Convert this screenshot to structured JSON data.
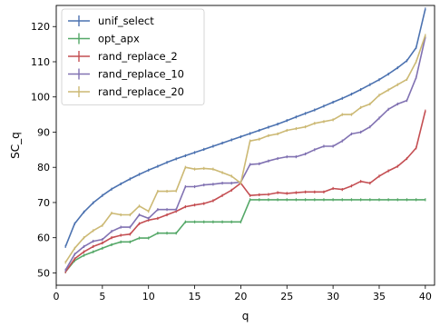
{
  "chart_data": {
    "type": "line",
    "xlabel": "q",
    "ylabel": "SC_q",
    "xlim": [
      0,
      41
    ],
    "ylim": [
      46.5,
      126
    ],
    "xticks": [
      "0",
      "5",
      "10",
      "15",
      "20",
      "25",
      "30",
      "35",
      "40"
    ],
    "yticks": [
      "50",
      "60",
      "70",
      "80",
      "90",
      "100",
      "110",
      "120"
    ],
    "grid": false,
    "legend_position": "top-left",
    "x": [
      1,
      2,
      3,
      4,
      5,
      6,
      7,
      8,
      9,
      10,
      11,
      12,
      13,
      14,
      15,
      16,
      17,
      18,
      19,
      20,
      21,
      22,
      23,
      24,
      25,
      26,
      27,
      28,
      29,
      30,
      31,
      32,
      33,
      34,
      35,
      36,
      37,
      38,
      39,
      40
    ],
    "series": [
      {
        "name": "unif_select",
        "color": "#4c72b0",
        "values": [
          57.5,
          64.0,
          67.3,
          69.9,
          72.0,
          73.8,
          75.3,
          76.7,
          78.0,
          79.2,
          80.3,
          81.4,
          82.4,
          83.3,
          84.2,
          85.1,
          86.0,
          86.9,
          87.8,
          88.7,
          89.6,
          90.5,
          91.4,
          92.3,
          93.3,
          94.3,
          95.3,
          96.3,
          97.4,
          98.5,
          99.6,
          100.8,
          102.1,
          103.5,
          104.9,
          106.5,
          108.3,
          110.3,
          114.0,
          125.0
        ]
      },
      {
        "name": "opt_apx",
        "color": "#55a868",
        "values": [
          50.3,
          53.5,
          55.0,
          56.0,
          57.0,
          58.0,
          58.8,
          58.8,
          59.9,
          59.9,
          61.3,
          61.3,
          61.3,
          64.5,
          64.5,
          64.5,
          64.5,
          64.5,
          64.5,
          64.5,
          70.8,
          70.8,
          70.8,
          70.8,
          70.8,
          70.8,
          70.8,
          70.8,
          70.8,
          70.8,
          70.8,
          70.8,
          70.8,
          70.8,
          70.8,
          70.8,
          70.8,
          70.8,
          70.8,
          70.8
        ]
      },
      {
        "name": "rand_replace_2",
        "color": "#c44e52",
        "values": [
          50.3,
          54.0,
          56.0,
          57.5,
          58.5,
          60.0,
          60.7,
          61.0,
          64.0,
          65.0,
          65.5,
          66.5,
          67.5,
          68.8,
          69.3,
          69.7,
          70.5,
          72.0,
          73.5,
          75.5,
          72.0,
          72.2,
          72.3,
          72.8,
          72.6,
          72.8,
          73.0,
          73.0,
          73.0,
          74.0,
          73.7,
          74.7,
          76.0,
          75.5,
          77.5,
          79.0,
          80.3,
          82.5,
          85.5,
          96.0
        ]
      },
      {
        "name": "rand_replace_10",
        "color": "#8172b2",
        "values": [
          50.8,
          55.3,
          57.5,
          59.0,
          59.5,
          61.8,
          63.0,
          63.0,
          66.5,
          65.5,
          68.0,
          68.0,
          68.0,
          74.5,
          74.5,
          75.0,
          75.2,
          75.5,
          75.5,
          75.8,
          80.8,
          81.0,
          81.8,
          82.5,
          83.0,
          83.0,
          83.8,
          85.0,
          86.0,
          86.0,
          87.5,
          89.5,
          90.0,
          91.5,
          94.0,
          96.5,
          98.0,
          99.0,
          105.5,
          117.0
        ]
      },
      {
        "name": "rand_replace_20",
        "color": "#ccb974",
        "values": [
          53.0,
          57.0,
          60.0,
          62.0,
          63.5,
          67.0,
          66.5,
          66.5,
          69.0,
          67.5,
          73.2,
          73.2,
          73.3,
          80.0,
          79.5,
          79.7,
          79.5,
          78.5,
          77.5,
          75.5,
          87.5,
          88.0,
          89.0,
          89.5,
          90.5,
          91.0,
          91.5,
          92.5,
          93.0,
          93.5,
          95.0,
          95.0,
          97.0,
          98.0,
          100.5,
          102.0,
          103.5,
          105.0,
          110.0,
          117.5
        ]
      }
    ]
  }
}
